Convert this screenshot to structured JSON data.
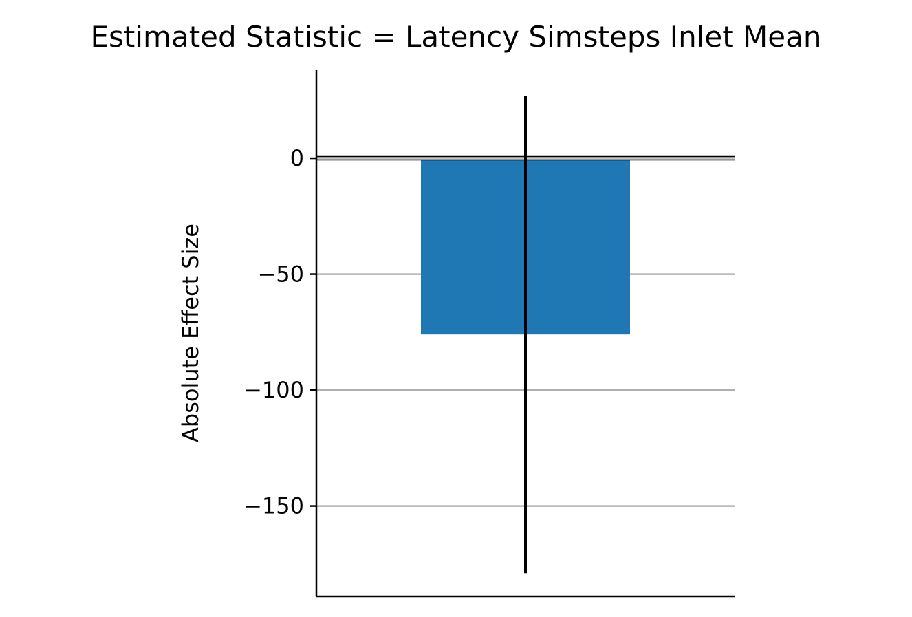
{
  "chart_data": {
    "type": "bar",
    "title": "Estimated Statistic = Latency Simsteps Inlet Mean",
    "xlabel": "",
    "ylabel": "Absolute Effect Size",
    "categories": [
      ""
    ],
    "values": [
      -76
    ],
    "error_bars": [
      {
        "low": -179,
        "high": 27
      }
    ],
    "ylim": [
      -189,
      38
    ],
    "yticks": [
      0,
      -50,
      -100,
      -150
    ],
    "ytick_labels": [
      "0",
      "−50",
      "−100",
      "−150"
    ],
    "grid": "horizontal",
    "zero_line": true,
    "legend": "none",
    "bar_color": "#1f77b4",
    "errorbar_color": "#000000",
    "grid_color": "#b0b0b0"
  }
}
